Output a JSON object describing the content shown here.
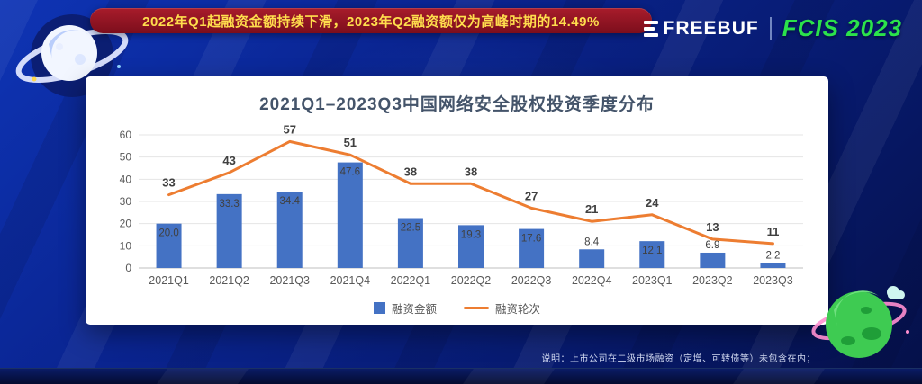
{
  "banner": {
    "text": "2022年Q1起融资金额持续下滑，2023年Q2融资额仅为高峰时期的14.49%"
  },
  "logo": {
    "freebuf": "FREEBUF",
    "event": "FCIS 2023"
  },
  "chart_data": {
    "type": "bar+line",
    "title": "2021Q1–2023Q3中国网络安全股权投资季度分布",
    "categories": [
      "2021Q1",
      "2021Q2",
      "2021Q3",
      "2021Q4",
      "2022Q1",
      "2022Q2",
      "2022Q3",
      "2022Q4",
      "2023Q1",
      "2023Q2",
      "2023Q3"
    ],
    "series": [
      {
        "name": "融资金额",
        "type": "bar",
        "color": "#4472C4",
        "values": [
          20.0,
          33.3,
          34.4,
          47.6,
          22.5,
          19.3,
          17.6,
          8.4,
          12.1,
          6.9,
          2.2
        ]
      },
      {
        "name": "融资轮次",
        "type": "line",
        "color": "#ED7D31",
        "values": [
          33,
          43,
          57,
          51,
          38,
          38,
          27,
          21,
          24,
          13,
          11
        ]
      }
    ],
    "ylim": [
      0,
      60
    ],
    "ytick_step": 10,
    "grid": true,
    "legend_position": "bottom",
    "label_color": "#404040",
    "axis_color": "#595959"
  },
  "footnote": {
    "text": "说明：上市公司在二级市场融资（定增、可转债等）未包含在内；"
  }
}
